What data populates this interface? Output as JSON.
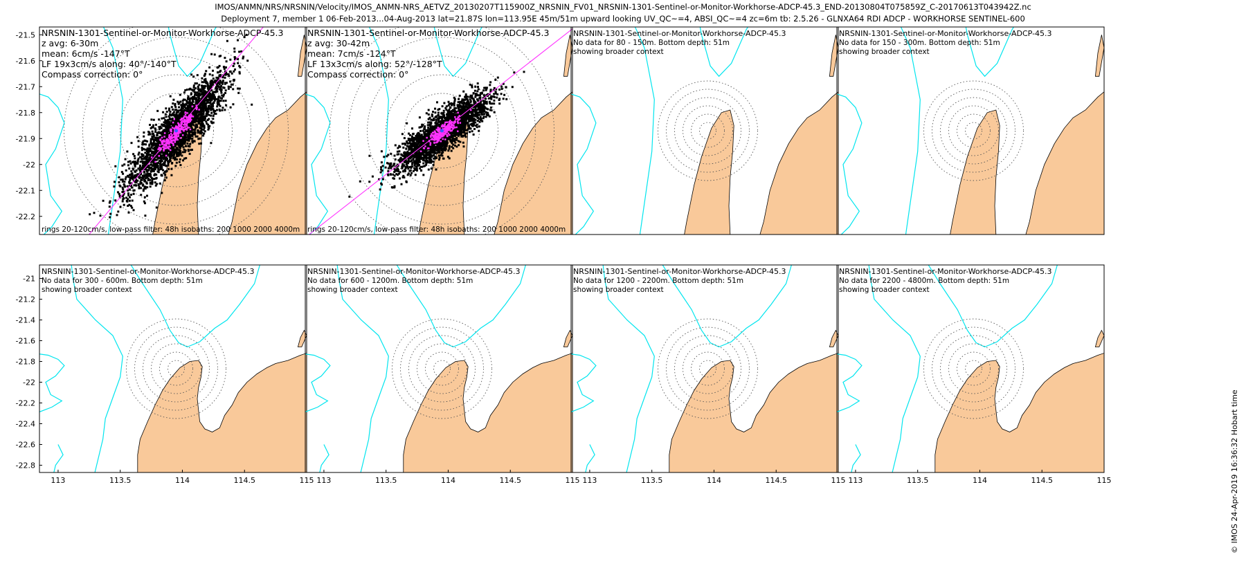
{
  "header": {
    "line1": "IMOS/ANMN/NRS/NRSNIN/Velocity/IMOS_ANMN-NRS_AETVZ_20130207T115900Z_NRSNIN_FV01_NRSNIN-1301-Sentinel-or-Monitor-Workhorse-ADCP-45.3_END-20130804T075859Z_C-20170613T043942Z.nc",
    "line2": "Deployment 7, member 1 06-Feb-2013...04-Aug-2013 lat=21.87S lon=113.95E 45m/51m upward looking UV_QC~=4, ABSI_QC~=4 zc=6m tb: 2.5.26 - GLNXA64 RDI ADCP - WORKHORSE SENTINEL-600"
  },
  "stamp": "© IMOS 24-Apr-2019 16:36:32 Hobart time",
  "colors": {
    "land": "#f9c99a",
    "isobath": "#00e5ee",
    "scatter": "#000000",
    "lowpass": "#ff33ff",
    "fit_line": "#ff33ff",
    "mean_marker": "#3a5bff",
    "ring": "#555555"
  },
  "chart_data": [
    {
      "type": "scatter",
      "title": "NRSNIN-1301-Sentinel-or-Monitor-Workhorse-ADCP-45.3",
      "info": [
        "z avg: 6-30m",
        "mean: 6cm/s -147°T",
        "LF 19x3cm/s along: 40°/-140°T",
        "Compass correction: 0°"
      ],
      "footer": "rings 20-120cm/s, low-pass filter: 48h isobaths: 200 1000 2000 4000m",
      "has_data": true,
      "center": [
        113.95,
        -21.87
      ],
      "scatter_axis_deg": 40,
      "scatter_major_cm": 70,
      "scatter_minor_cm": 18,
      "xlim": [
        112.85,
        115
      ],
      "ylim": [
        -22.27,
        -21.47
      ],
      "xticks": [],
      "yticks": [
        -21.5,
        -21.6,
        -21.7,
        -21.8,
        -21.9,
        -22,
        -22.1,
        -22.2
      ],
      "ring_spacing_ylim_frac": 0.09
    },
    {
      "type": "scatter",
      "title": "NRSNIN-1301-Sentinel-or-Monitor-Workhorse-ADCP-45.3",
      "info": [
        "z avg: 30-42m",
        "mean: 7cm/s -124°T",
        "LF 13x3cm/s along: 52°/-128°T",
        "Compass correction: 0°"
      ],
      "footer": "rings 20-120cm/s, low-pass filter: 48h isobaths: 200 1000 2000 4000m",
      "has_data": true,
      "center": [
        113.95,
        -21.87
      ],
      "scatter_axis_deg": 52,
      "scatter_major_cm": 55,
      "scatter_minor_cm": 15,
      "xlim": [
        112.85,
        115
      ],
      "ylim": [
        -22.27,
        -21.47
      ],
      "xticks": [],
      "yticks": [],
      "ring_spacing_ylim_frac": 0.09
    },
    {
      "type": "scatter",
      "title": "NRSNIN-1301-Sentinel-or-Monitor-Workhorse-ADCP-45.3",
      "info": [
        "No data for 80 - 150m. Bottom depth: 51m",
        "showing broader context"
      ],
      "footer": "",
      "has_data": false,
      "center": [
        113.95,
        -21.87
      ],
      "xlim": [
        112.85,
        115
      ],
      "ylim": [
        -22.27,
        -21.47
      ],
      "xticks": [],
      "yticks": [],
      "ring_spacing_ylim_frac": 0.04
    },
    {
      "type": "scatter",
      "title": "NRSNIN-1301-Sentinel-or-Monitor-Workhorse-ADCP-45.3",
      "info": [
        "No data for 150 - 300m. Bottom depth: 51m",
        "showing broader context"
      ],
      "footer": "",
      "has_data": false,
      "center": [
        113.95,
        -21.87
      ],
      "xlim": [
        112.85,
        115
      ],
      "ylim": [
        -22.27,
        -21.47
      ],
      "xticks": [],
      "yticks": [],
      "ring_spacing_ylim_frac": 0.04
    },
    {
      "type": "scatter",
      "title": "NRSNIN-1301-Sentinel-or-Monitor-Workhorse-ADCP-45.3",
      "info": [
        "No data for 300 - 600m. Bottom depth: 51m",
        "showing broader context"
      ],
      "footer": "",
      "has_data": false,
      "center": [
        113.95,
        -21.87
      ],
      "xlim": [
        112.85,
        115
      ],
      "ylim": [
        -22.87,
        -20.87
      ],
      "xticks": [
        113,
        113.5,
        114,
        114.5,
        115
      ],
      "yticks": [
        -21,
        -21.2,
        -21.4,
        -21.6,
        -21.8,
        -22,
        -22.2,
        -22.4,
        -22.6,
        -22.8
      ],
      "ring_spacing_ylim_frac": 0.04
    },
    {
      "type": "scatter",
      "title": "NRSNIN-1301-Sentinel-or-Monitor-Workhorse-ADCP-45.3",
      "info": [
        "No data for 600 - 1200m. Bottom depth: 51m",
        "showing broader context"
      ],
      "footer": "",
      "has_data": false,
      "center": [
        113.95,
        -21.87
      ],
      "xlim": [
        112.85,
        115
      ],
      "ylim": [
        -22.87,
        -20.87
      ],
      "xticks": [
        113,
        113.5,
        114,
        114.5,
        115
      ],
      "yticks": [],
      "ring_spacing_ylim_frac": 0.04
    },
    {
      "type": "scatter",
      "title": "NRSNIN-1301-Sentinel-or-Monitor-Workhorse-ADCP-45.3",
      "info": [
        "No data for 1200 - 2200m. Bottom depth: 51m",
        "showing broader context"
      ],
      "footer": "",
      "has_data": false,
      "center": [
        113.95,
        -21.87
      ],
      "xlim": [
        112.85,
        115
      ],
      "ylim": [
        -22.87,
        -20.87
      ],
      "xticks": [
        113,
        113.5,
        114,
        114.5,
        115
      ],
      "yticks": [],
      "ring_spacing_ylim_frac": 0.04
    },
    {
      "type": "scatter",
      "title": "NRSNIN-1301-Sentinel-or-Monitor-Workhorse-ADCP-45.3",
      "info": [
        "No data for 2200 - 4800m. Bottom depth: 51m",
        "showing broader context"
      ],
      "footer": "",
      "has_data": false,
      "center": [
        113.95,
        -21.87
      ],
      "xlim": [
        112.85,
        115
      ],
      "ylim": [
        -22.87,
        -20.87
      ],
      "xticks": [
        113,
        113.5,
        114,
        114.5,
        115
      ],
      "yticks": [],
      "ring_spacing_ylim_frac": 0.04
    }
  ]
}
